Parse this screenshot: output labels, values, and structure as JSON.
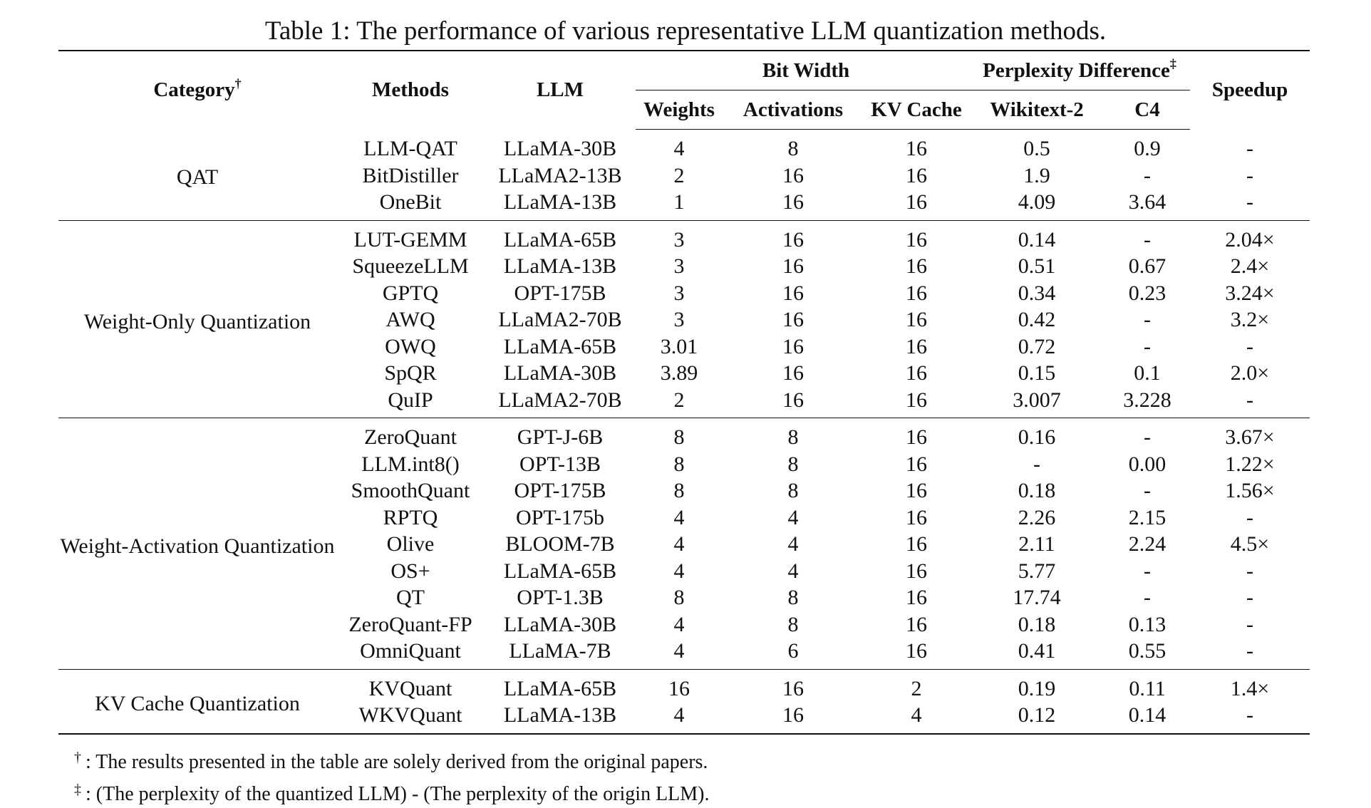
{
  "caption": "Table 1: The performance of various representative LLM quantization methods.",
  "headers": {
    "category": "Category",
    "category_mark": "†",
    "methods": "Methods",
    "llm": "LLM",
    "bit_width": "Bit Width",
    "perplexity_difference": "Perplexity Difference",
    "perplexity_mark": "‡",
    "speedup": "Speedup",
    "weights": "Weights",
    "activations": "Activations",
    "kv_cache": "KV Cache",
    "wikitext2": "Wikitext-2",
    "c4": "C4"
  },
  "groups": [
    {
      "category": "QAT",
      "rows": [
        {
          "method": "LLM-QAT",
          "llm": "LLaMA-30B",
          "weights": "4",
          "activations": "8",
          "kv_cache": "16",
          "wikitext2": "0.5",
          "c4": "0.9",
          "speedup": "-"
        },
        {
          "method": "BitDistiller",
          "llm": "LLaMA2-13B",
          "weights": "2",
          "activations": "16",
          "kv_cache": "16",
          "wikitext2": "1.9",
          "c4": "-",
          "speedup": "-"
        },
        {
          "method": "OneBit",
          "llm": "LLaMA-13B",
          "weights": "1",
          "activations": "16",
          "kv_cache": "16",
          "wikitext2": "4.09",
          "c4": "3.64",
          "speedup": "-"
        }
      ]
    },
    {
      "category": "Weight-Only Quantization",
      "rows": [
        {
          "method": "LUT-GEMM",
          "llm": "LLaMA-65B",
          "weights": "3",
          "activations": "16",
          "kv_cache": "16",
          "wikitext2": "0.14",
          "c4": "-",
          "speedup": "2.04×"
        },
        {
          "method": "SqueezeLLM",
          "llm": "LLaMA-13B",
          "weights": "3",
          "activations": "16",
          "kv_cache": "16",
          "wikitext2": "0.51",
          "c4": "0.67",
          "speedup": "2.4×"
        },
        {
          "method": "GPTQ",
          "llm": "OPT-175B",
          "weights": "3",
          "activations": "16",
          "kv_cache": "16",
          "wikitext2": "0.34",
          "c4": "0.23",
          "speedup": "3.24×"
        },
        {
          "method": "AWQ",
          "llm": "LLaMA2-70B",
          "weights": "3",
          "activations": "16",
          "kv_cache": "16",
          "wikitext2": "0.42",
          "c4": "-",
          "speedup": "3.2×"
        },
        {
          "method": "OWQ",
          "llm": "LLaMA-65B",
          "weights": "3.01",
          "activations": "16",
          "kv_cache": "16",
          "wikitext2": "0.72",
          "c4": "-",
          "speedup": "-"
        },
        {
          "method": "SpQR",
          "llm": "LLaMA-30B",
          "weights": "3.89",
          "activations": "16",
          "kv_cache": "16",
          "wikitext2": "0.15",
          "c4": "0.1",
          "speedup": "2.0×"
        },
        {
          "method": "QuIP",
          "llm": "LLaMA2-70B",
          "weights": "2",
          "activations": "16",
          "kv_cache": "16",
          "wikitext2": "3.007",
          "c4": "3.228",
          "speedup": "-"
        }
      ]
    },
    {
      "category": "Weight-Activation Quantization",
      "rows": [
        {
          "method": "ZeroQuant",
          "llm": "GPT-J-6B",
          "weights": "8",
          "activations": "8",
          "kv_cache": "16",
          "wikitext2": "0.16",
          "c4": "-",
          "speedup": "3.67×"
        },
        {
          "method": "LLM.int8()",
          "llm": "OPT-13B",
          "weights": "8",
          "activations": "8",
          "kv_cache": "16",
          "wikitext2": "-",
          "c4": "0.00",
          "speedup": "1.22×"
        },
        {
          "method": "SmoothQuant",
          "llm": "OPT-175B",
          "weights": "8",
          "activations": "8",
          "kv_cache": "16",
          "wikitext2": "0.18",
          "c4": "-",
          "speedup": "1.56×"
        },
        {
          "method": "RPTQ",
          "llm": "OPT-175b",
          "weights": "4",
          "activations": "4",
          "kv_cache": "16",
          "wikitext2": "2.26",
          "c4": "2.15",
          "speedup": "-"
        },
        {
          "method": "Olive",
          "llm": "BLOOM-7B",
          "weights": "4",
          "activations": "4",
          "kv_cache": "16",
          "wikitext2": "2.11",
          "c4": "2.24",
          "speedup": "4.5×"
        },
        {
          "method": "OS+",
          "llm": "LLaMA-65B",
          "weights": "4",
          "activations": "4",
          "kv_cache": "16",
          "wikitext2": "5.77",
          "c4": "-",
          "speedup": "-"
        },
        {
          "method": "QT",
          "llm": "OPT-1.3B",
          "weights": "8",
          "activations": "8",
          "kv_cache": "16",
          "wikitext2": "17.74",
          "c4": "-",
          "speedup": "-"
        },
        {
          "method": "ZeroQuant-FP",
          "llm": "LLaMA-30B",
          "weights": "4",
          "activations": "8",
          "kv_cache": "16",
          "wikitext2": "0.18",
          "c4": "0.13",
          "speedup": "-"
        },
        {
          "method": "OmniQuant",
          "llm": "LLaMA-7B",
          "weights": "4",
          "activations": "6",
          "kv_cache": "16",
          "wikitext2": "0.41",
          "c4": "0.55",
          "speedup": "-"
        }
      ]
    },
    {
      "category": "KV Cache Quantization",
      "rows": [
        {
          "method": "KVQuant",
          "llm": "LLaMA-65B",
          "weights": "16",
          "activations": "16",
          "kv_cache": "2",
          "wikitext2": "0.19",
          "c4": "0.11",
          "speedup": "1.4×"
        },
        {
          "method": "WKVQuant",
          "llm": "LLaMA-13B",
          "weights": "4",
          "activations": "16",
          "kv_cache": "4",
          "wikitext2": "0.12",
          "c4": "0.14",
          "speedup": "-"
        }
      ]
    }
  ],
  "footnotes": [
    {
      "mark": "†",
      "text": ": The results presented in the table are solely derived from the original papers."
    },
    {
      "mark": "‡",
      "text": ": (The perplexity of the quantized LLM) - (The perplexity of the origin LLM)."
    }
  ]
}
